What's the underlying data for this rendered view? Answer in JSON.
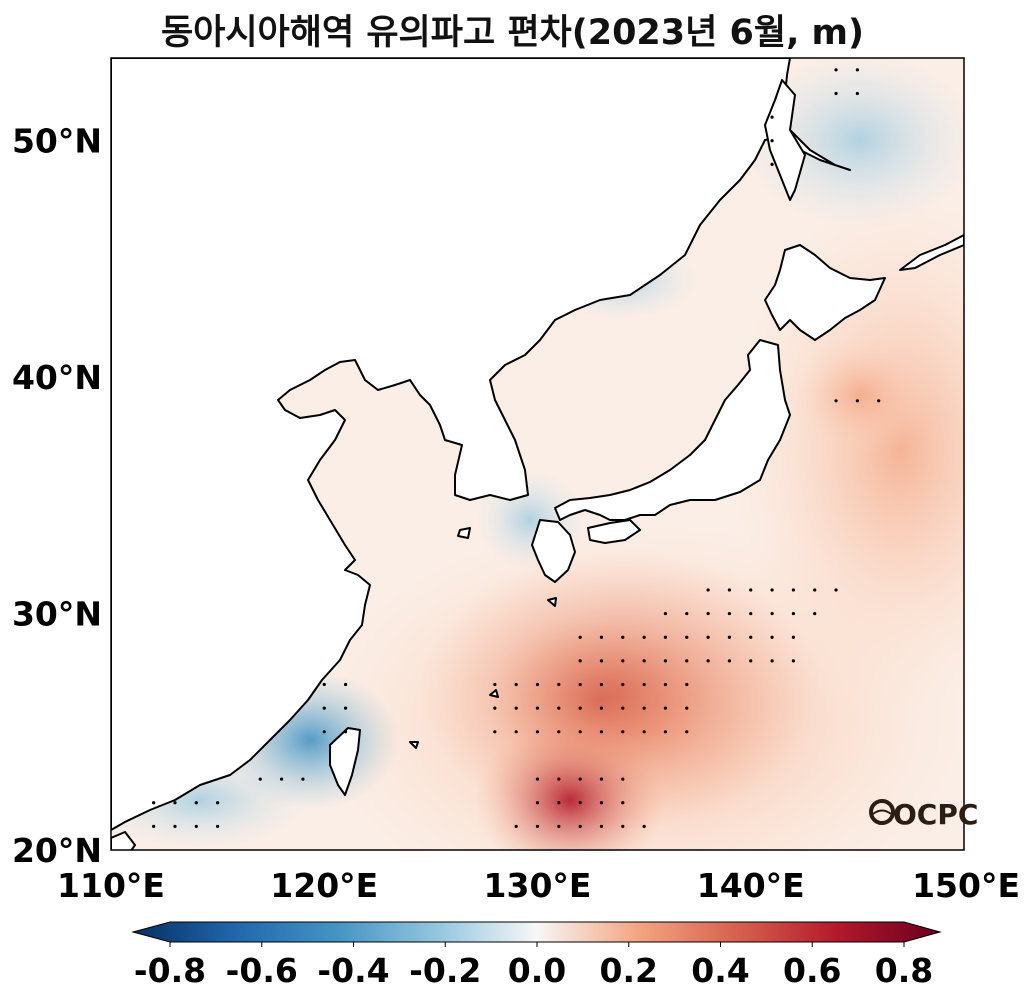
{
  "title": "동아시아해역 유의파고 편차(2023년 6월, m)",
  "map": {
    "lon_range": [
      110,
      150
    ],
    "lat_range": [
      20,
      53.5
    ],
    "x_ticks": [
      "110°E",
      "120°E",
      "130°E",
      "140°E",
      "150°E"
    ],
    "y_ticks": [
      "20°N",
      "30°N",
      "40°N",
      "50°N"
    ],
    "x_tick_values": [
      110,
      120,
      130,
      140,
      150
    ],
    "y_tick_values": [
      20,
      30,
      40,
      50
    ],
    "projection": "PlateCarree"
  },
  "colorbar": {
    "colormap": "RdBu_r",
    "range": [
      -0.8,
      0.8
    ],
    "extend": "both",
    "tick_labels": [
      "-0.8",
      "-0.6",
      "-0.4",
      "-0.2",
      "0.0",
      "0.2",
      "0.4",
      "0.6",
      "0.8"
    ],
    "colors": [
      "#053061",
      "#2166ac",
      "#4393c3",
      "#92c5de",
      "#f7f7f7",
      "#f4a582",
      "#d6604d",
      "#b2182b",
      "#67001f"
    ]
  },
  "logo": "OCPC",
  "anomaly_field": [
    {
      "lon": 131,
      "lat": 21,
      "value": 0.6
    },
    {
      "lon": 132,
      "lat": 24,
      "value": 0.5
    },
    {
      "lon": 133,
      "lat": 27,
      "value": 0.45
    },
    {
      "lon": 136,
      "lat": 29,
      "value": 0.4
    },
    {
      "lon": 140,
      "lat": 29,
      "value": 0.3
    },
    {
      "lon": 145,
      "lat": 39,
      "value": 0.3
    },
    {
      "lon": 147,
      "lat": 34,
      "value": 0.25
    },
    {
      "lon": 120,
      "lat": 25,
      "value": -0.35
    },
    {
      "lon": 114,
      "lat": 21.5,
      "value": -0.2
    },
    {
      "lon": 129,
      "lat": 34,
      "value": -0.15
    },
    {
      "lon": 144,
      "lat": 50,
      "value": -0.1
    },
    {
      "lon": 123,
      "lat": 37,
      "value": 0.1
    }
  ]
}
